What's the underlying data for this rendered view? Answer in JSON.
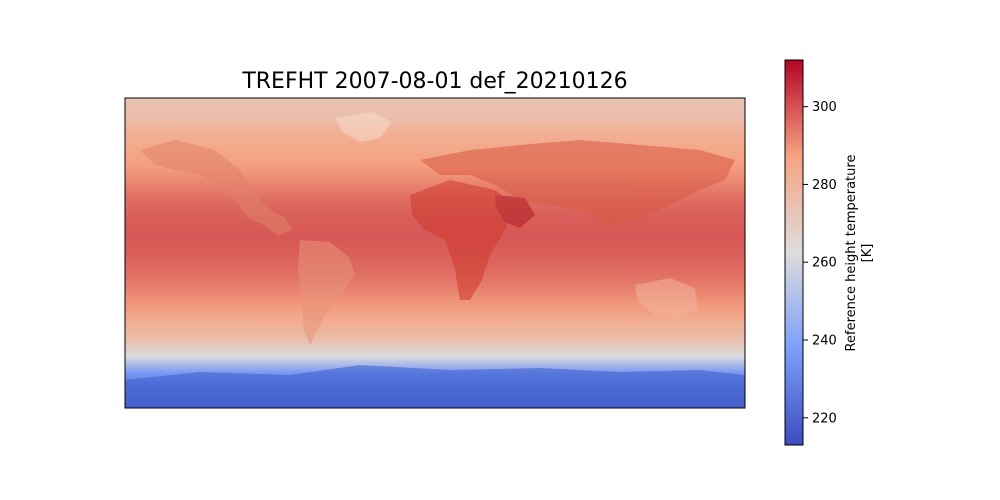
{
  "chart_data": {
    "type": "heatmap",
    "title": "TREFHT 2007-08-01 def_20210126",
    "colorbar": {
      "label_line1": "Reference height temperature",
      "label_line2": "[K]",
      "ticks": [
        220,
        240,
        260,
        280,
        300
      ],
      "tick_labels": [
        "220",
        "240",
        "260",
        "280",
        "300"
      ],
      "vmin": 213,
      "vmax": 312,
      "colormap": "coolwarm"
    },
    "latitude_profile_K": [
      {
        "lat": 90,
        "value": 274
      },
      {
        "lat": 80,
        "value": 275
      },
      {
        "lat": 70,
        "value": 282
      },
      {
        "lat": 60,
        "value": 285
      },
      {
        "lat": 50,
        "value": 288
      },
      {
        "lat": 40,
        "value": 292
      },
      {
        "lat": 30,
        "value": 296
      },
      {
        "lat": 20,
        "value": 298
      },
      {
        "lat": 10,
        "value": 299
      },
      {
        "lat": 0,
        "value": 298
      },
      {
        "lat": -10,
        "value": 296
      },
      {
        "lat": -20,
        "value": 293
      },
      {
        "lat": -30,
        "value": 289
      },
      {
        "lat": -40,
        "value": 283
      },
      {
        "lat": -50,
        "value": 276
      },
      {
        "lat": -60,
        "value": 262
      },
      {
        "lat": -70,
        "value": 235
      },
      {
        "lat": -80,
        "value": 225
      },
      {
        "lat": -90,
        "value": 220
      }
    ]
  }
}
